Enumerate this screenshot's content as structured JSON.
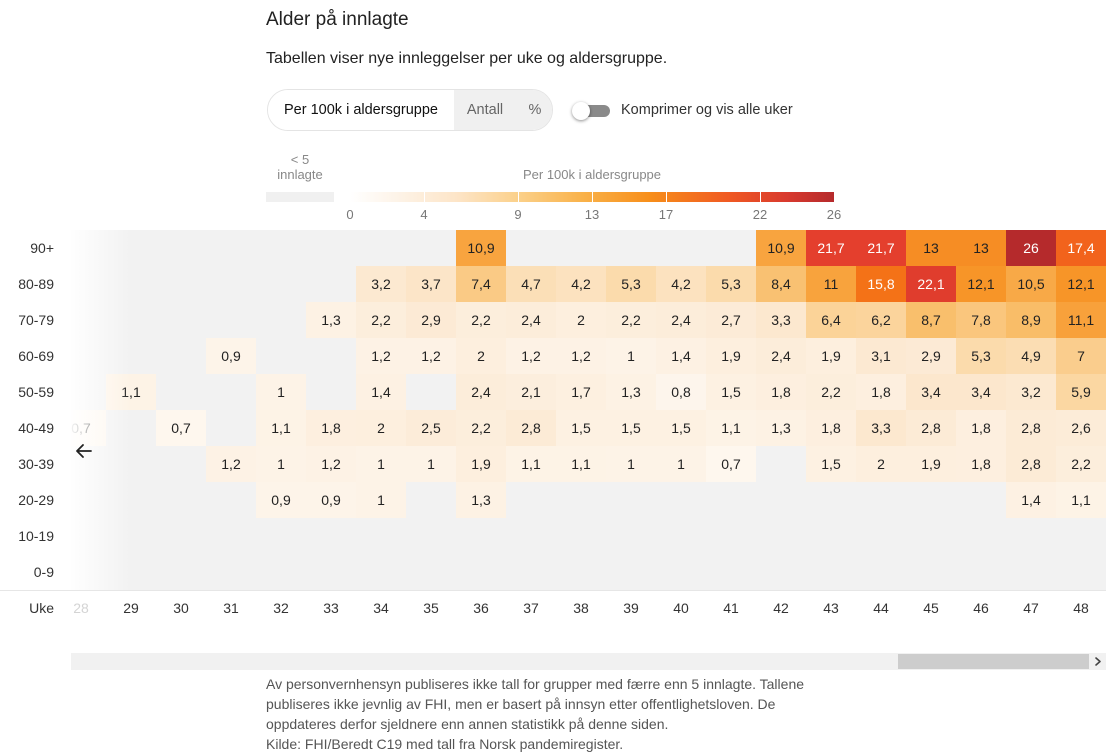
{
  "header": {
    "title": "Alder på innlagte",
    "subtitle": "Tabellen viser nye innleggelser per uke og aldersgruppe."
  },
  "controls": {
    "segments": [
      "Per 100k i aldersgruppe",
      "Antall",
      "%"
    ],
    "selected": "Per 100k i aldersgruppe",
    "toggle_label": "Komprimer og vis alle uker",
    "toggle_on": false
  },
  "legend": {
    "under5_label_1": "< 5",
    "under5_label_2": "innlagte",
    "scale_title": "Per 100k i aldersgruppe",
    "ticks": [
      "0",
      "4",
      "9",
      "13",
      "17",
      "22",
      "26"
    ],
    "colors": [
      "#ffffff",
      "#fde5c8",
      "#f9b24a",
      "#f05a22",
      "#b52a2c"
    ]
  },
  "chart_data": {
    "type": "heatmap",
    "x_axis_label": "Uke",
    "weeks": [
      "28",
      "29",
      "30",
      "31",
      "32",
      "33",
      "34",
      "35",
      "36",
      "37",
      "38",
      "39",
      "40",
      "41",
      "42",
      "43",
      "44",
      "45",
      "46",
      "47",
      "48"
    ],
    "age_groups": [
      "90+",
      "80-89",
      "70-79",
      "60-69",
      "50-59",
      "40-49",
      "30-39",
      "20-29",
      "10-19",
      "0-9"
    ],
    "values": [
      [
        null,
        null,
        null,
        null,
        null,
        null,
        null,
        null,
        10.9,
        null,
        null,
        null,
        null,
        null,
        10.9,
        21.7,
        21.7,
        13.0,
        13.0,
        26.0,
        17.4
      ],
      [
        null,
        null,
        null,
        null,
        null,
        null,
        3.2,
        3.7,
        7.4,
        4.7,
        4.2,
        5.3,
        4.2,
        5.3,
        8.4,
        11.0,
        15.8,
        22.1,
        12.1,
        10.5,
        12.1
      ],
      [
        null,
        null,
        null,
        null,
        null,
        1.3,
        2.2,
        2.9,
        2.2,
        2.4,
        2.0,
        2.2,
        2.4,
        2.7,
        3.3,
        6.4,
        6.2,
        8.7,
        7.8,
        8.9,
        11.1
      ],
      [
        null,
        null,
        null,
        0.9,
        null,
        null,
        1.2,
        1.2,
        2.0,
        1.2,
        1.2,
        1.0,
        1.4,
        1.9,
        2.4,
        1.9,
        3.1,
        2.9,
        5.3,
        4.9,
        7.0
      ],
      [
        null,
        1.1,
        null,
        null,
        1.0,
        null,
        1.4,
        null,
        2.4,
        2.1,
        1.7,
        1.3,
        0.8,
        1.5,
        1.8,
        2.2,
        1.8,
        3.4,
        3.4,
        3.2,
        5.9
      ],
      [
        0.7,
        null,
        0.7,
        null,
        1.1,
        1.8,
        2.0,
        2.5,
        2.2,
        2.8,
        1.5,
        1.5,
        1.5,
        1.1,
        1.3,
        1.8,
        3.3,
        2.8,
        1.8,
        2.8,
        2.6
      ],
      [
        null,
        null,
        null,
        1.2,
        1.0,
        1.2,
        1.0,
        1.0,
        1.9,
        1.1,
        1.1,
        1.0,
        1.0,
        0.7,
        null,
        1.5,
        2.0,
        1.9,
        1.8,
        2.8,
        2.2
      ],
      [
        null,
        null,
        null,
        null,
        0.9,
        0.9,
        1.0,
        null,
        1.3,
        null,
        null,
        null,
        null,
        null,
        null,
        null,
        null,
        null,
        null,
        1.4,
        1.1
      ],
      [
        null,
        null,
        null,
        null,
        null,
        null,
        null,
        null,
        null,
        null,
        null,
        null,
        null,
        null,
        null,
        null,
        null,
        null,
        null,
        null,
        null
      ],
      [
        null,
        null,
        null,
        null,
        null,
        null,
        null,
        null,
        null,
        null,
        null,
        null,
        null,
        null,
        null,
        null,
        null,
        null,
        null,
        null,
        null
      ]
    ],
    "value_range": [
      0,
      26
    ],
    "null_meaning": "< 5 innlagte"
  },
  "footer": {
    "note": "Av personvernhensyn publiseres ikke tall for grupper med færre enn 5 innlagte. Tallene publiseres ikke jevnlig av FHI, men er basert på innsyn etter offentlighetsloven. De oppdateres derfor sjeldnere enn annen statistikk på denne siden.",
    "source": "Kilde: FHI/Beredt C19 med tall fra Norsk pandemiregister."
  },
  "icons": {
    "scroll_left": "arrow-left-icon",
    "scroll_right": "chevron-right-icon"
  }
}
